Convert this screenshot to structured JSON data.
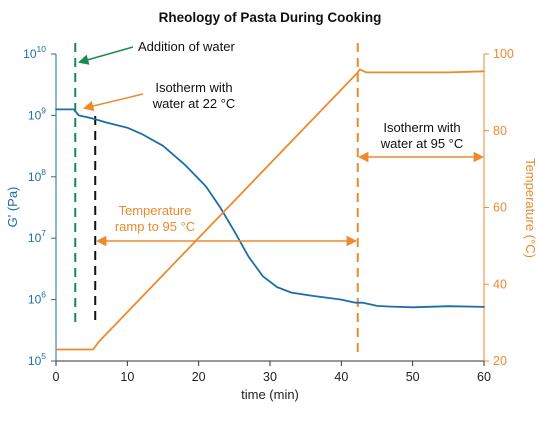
{
  "chart_data": {
    "type": "line",
    "title": "Rheology of Pasta During Cooking",
    "xlabel": "time (min)",
    "ylabel": "G' (Pa)",
    "ylabel_right": "Temperature (°C)",
    "xlim": [
      0,
      60
    ],
    "x_ticks": [
      "0",
      "10",
      "20",
      "30",
      "40",
      "50",
      "60"
    ],
    "ylim_left_log10": [
      5,
      10
    ],
    "y_ticks_left": [
      {
        "base": "10",
        "exp": "5"
      },
      {
        "base": "10",
        "exp": "6"
      },
      {
        "base": "10",
        "exp": "7"
      },
      {
        "base": "10",
        "exp": "8"
      },
      {
        "base": "10",
        "exp": "9"
      },
      {
        "base": "10",
        "exp": "10"
      }
    ],
    "ylim_right": [
      20,
      100
    ],
    "y_ticks_right": [
      "20",
      "40",
      "60",
      "80",
      "100"
    ],
    "grid": false,
    "series": [
      {
        "axis": "left",
        "color": "#1b6fa8",
        "points": [
          [
            0,
            1250000000.0
          ],
          [
            2.5,
            1250000000.0
          ],
          [
            3.2,
            1000000000.0
          ],
          [
            5,
            900000000.0
          ],
          [
            7,
            770000000.0
          ],
          [
            10,
            630000000.0
          ],
          [
            12,
            500000000.0
          ],
          [
            15,
            320000000.0
          ],
          [
            18,
            160000000.0
          ],
          [
            21,
            70000000.0
          ],
          [
            23,
            32000000.0
          ],
          [
            25,
            13000000.0
          ],
          [
            27,
            5000000.0
          ],
          [
            29,
            2400000.0
          ],
          [
            31,
            1600000.0
          ],
          [
            33,
            1300000.0
          ],
          [
            36,
            1150000.0
          ],
          [
            40,
            1000000.0
          ],
          [
            42,
            890000.0
          ],
          [
            43,
            890000.0
          ],
          [
            44,
            840000.0
          ],
          [
            45,
            790000.0
          ],
          [
            47,
            770000.0
          ],
          [
            50,
            750000.0
          ],
          [
            55,
            780000.0
          ],
          [
            60,
            760000.0
          ]
        ]
      },
      {
        "axis": "right",
        "color": "#ec8a2e",
        "points": [
          [
            0,
            23
          ],
          [
            5.2,
            23
          ],
          [
            6,
            25
          ],
          [
            42.2,
            95
          ],
          [
            42.6,
            96
          ],
          [
            43.5,
            95.2
          ],
          [
            50,
            95.2
          ],
          [
            55,
            95.2
          ],
          [
            60,
            95.5
          ]
        ]
      }
    ],
    "vlines": [
      {
        "x": 2.7,
        "color": "#1a8a55"
      },
      {
        "x": 5.5,
        "color": "#111111"
      },
      {
        "x": 42.3,
        "color": "#ec8a2e"
      }
    ],
    "annotations": [
      {
        "name": "addition-of-water",
        "text": "Addition of water",
        "color": "#1a8a55"
      },
      {
        "name": "isotherm-22",
        "lines": [
          "Isotherm with",
          "water at 22 °C"
        ],
        "color": "#ec8a2e"
      },
      {
        "name": "temperature-ramp",
        "lines": [
          "Temperature",
          "ramp to 95 °C"
        ],
        "color": "#ec8a2e"
      },
      {
        "name": "isotherm-95",
        "lines": [
          "Isotherm with",
          "water at 95 °C"
        ],
        "color": "#111111"
      }
    ]
  }
}
